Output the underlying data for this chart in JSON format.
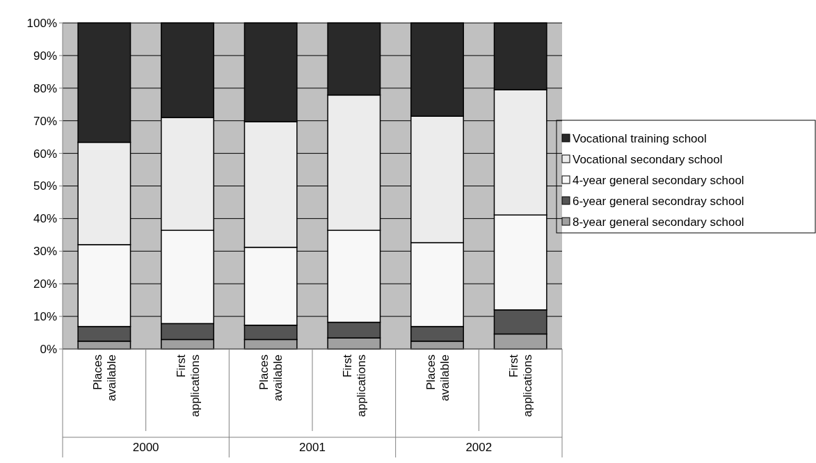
{
  "chart_data": {
    "type": "bar",
    "stacked": true,
    "categories": [
      "Places available",
      "First applications",
      "Places available",
      "First applications",
      "Places available",
      "First applications"
    ],
    "series": [
      {
        "name": "8-year general secondary school",
        "color": "#a0a0a0",
        "values": [
          2.4,
          2.9,
          2.9,
          3.4,
          2.4,
          4.6
        ]
      },
      {
        "name": "6-year general secondray school",
        "color": "#555555",
        "values": [
          4.5,
          4.9,
          4.4,
          4.8,
          4.5,
          7.4
        ]
      },
      {
        "name": "4-year general secondary school",
        "color": "#f8f8f8",
        "values": [
          25.1,
          28.6,
          23.9,
          28.2,
          25.7,
          29.1
        ]
      },
      {
        "name": "Vocational secondary school",
        "color": "#ececec",
        "values": [
          31.4,
          34.6,
          38.5,
          41.5,
          38.8,
          38.4
        ]
      },
      {
        "name": "Vocational training school",
        "color": "#292929",
        "values": [
          36.6,
          29.0,
          30.3,
          22.1,
          28.6,
          20.5
        ]
      }
    ],
    "ylim": [
      0,
      100
    ],
    "yticks": [
      {
        "value": 0,
        "label": "0%"
      },
      {
        "value": 10,
        "label": "10%"
      },
      {
        "value": 20,
        "label": "20%"
      },
      {
        "value": 30,
        "label": "30%"
      },
      {
        "value": 40,
        "label": "40%"
      },
      {
        "value": 50,
        "label": "50%"
      },
      {
        "value": 60,
        "label": "60%"
      },
      {
        "value": 70,
        "label": "70%"
      },
      {
        "value": 80,
        "label": "80%"
      },
      {
        "value": 90,
        "label": "90%"
      },
      {
        "value": 100,
        "label": "100%"
      }
    ],
    "grid": "y",
    "legend": "right",
    "annotations": [
      "2000",
      "2001",
      "2002"
    ]
  }
}
